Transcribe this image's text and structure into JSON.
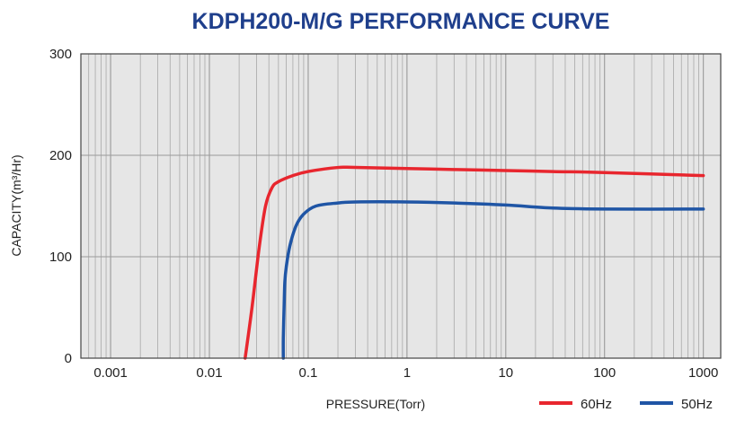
{
  "chart_data": {
    "type": "line",
    "title": "KDPH200-M/G  PERFORMANCE CURVE",
    "xlabel": "PRESSURE(Torr)",
    "ylabel": "CAPACITY(m³/Hr)",
    "xscale": "log",
    "xlim": [
      0.0005,
      1500
    ],
    "ylim": [
      0,
      300
    ],
    "xticks": [
      "0.001",
      "0.01",
      "0.1",
      "1",
      "10",
      "100",
      "1000"
    ],
    "yticks": [
      "0",
      "100",
      "200",
      "300"
    ],
    "grid": true,
    "legend_position": "bottom-right",
    "series": [
      {
        "name": "60Hz",
        "color": "#e8262e",
        "points": [
          [
            0.023,
            0
          ],
          [
            0.027,
            50
          ],
          [
            0.032,
            110
          ],
          [
            0.037,
            150
          ],
          [
            0.043,
            168
          ],
          [
            0.05,
            174
          ],
          [
            0.07,
            180
          ],
          [
            0.1,
            184
          ],
          [
            0.2,
            188
          ],
          [
            0.3,
            188
          ],
          [
            1,
            187
          ],
          [
            3,
            186
          ],
          [
            10,
            185
          ],
          [
            30,
            184
          ],
          [
            100,
            183
          ],
          [
            1000,
            180
          ]
        ]
      },
      {
        "name": "50Hz",
        "color": "#1f55a5",
        "points": [
          [
            0.056,
            0
          ],
          [
            0.056,
            20
          ],
          [
            0.057,
            50
          ],
          [
            0.058,
            75
          ],
          [
            0.06,
            90
          ],
          [
            0.065,
            110
          ],
          [
            0.075,
            130
          ],
          [
            0.09,
            142
          ],
          [
            0.12,
            150
          ],
          [
            0.2,
            153
          ],
          [
            0.3,
            154
          ],
          [
            1,
            154
          ],
          [
            3,
            153
          ],
          [
            10,
            151
          ],
          [
            30,
            148
          ],
          [
            100,
            147
          ],
          [
            1000,
            147
          ]
        ]
      }
    ]
  }
}
